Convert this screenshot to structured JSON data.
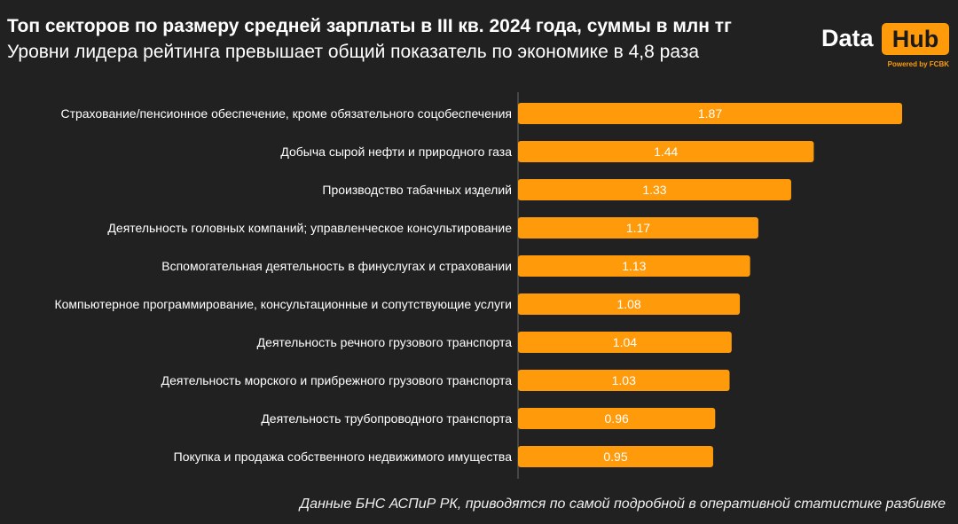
{
  "title": "Топ секторов по размеру средней зарплаты в III кв. 2024 года, суммы в млн тг",
  "subtitle": "Уровни лидера рейтинга превышает общий показатель по экономике в 4,8 раза",
  "logo": {
    "data_text": "Data",
    "hub_text": "Hub",
    "powered_text": "Powered by FCBK"
  },
  "source": "Данные БНС АСПиР РК, приводятся по самой подробной в оперативной статистике разбивке",
  "colors": {
    "background": "#212121",
    "bar": "#ff9a0a",
    "accent": "#ff9a0a",
    "text": "#ffffff"
  },
  "chart_data": {
    "type": "bar",
    "orientation": "horizontal",
    "categories": [
      "Страхование/пенсионное обеспечение, кроме обязательного соцобеспечения",
      "Добыча сырой нефти и природного газа",
      "Производство табачных изделий",
      "Деятельность головных компаний; управленческое консультирование",
      "Вспомогательная деятельность в финуслугах и страховании",
      "Компьютерное программирование, консультационные и сопутствующие услуги",
      "Деятельность речного грузового транспорта",
      "Деятельность морского и прибрежного грузового транспорта",
      "Деятельность трубопроводного транспорта",
      "Покупка и продажа собственного недвижимого имущества"
    ],
    "values": [
      1.87,
      1.44,
      1.33,
      1.17,
      1.13,
      1.08,
      1.04,
      1.03,
      0.96,
      0.95
    ],
    "value_labels": [
      "1.87",
      "1.44",
      "1.33",
      "1.17",
      "1.13",
      "1.08",
      "1.04",
      "1.03",
      "0.96",
      "0.95"
    ],
    "xlim": [
      0,
      1.87
    ],
    "grid": false,
    "legend": "none"
  }
}
